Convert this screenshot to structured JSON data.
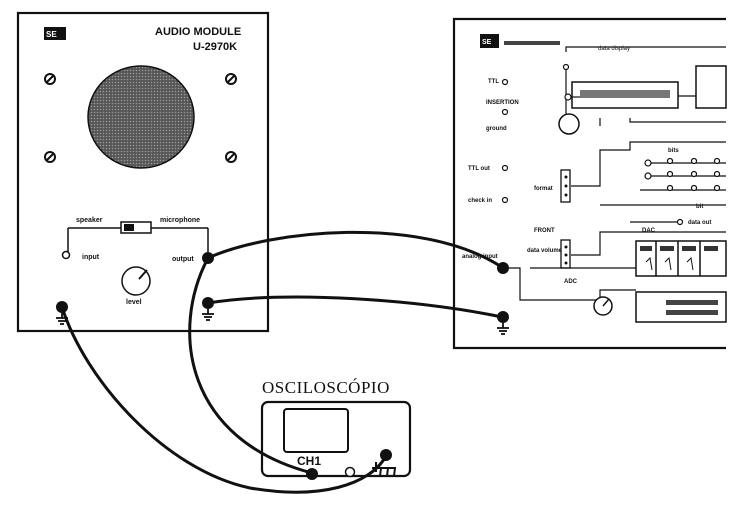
{
  "audio_module": {
    "logo": "SE",
    "title": "AUDIO MODULE",
    "model": "U-2970K",
    "switch_left": "speaker",
    "switch_right": "microphone",
    "input_label": "input",
    "output_label": "output",
    "level_label": "level"
  },
  "digital_module": {
    "logo": "SE",
    "title": "",
    "labels": {
      "data_display": "data display",
      "ttl": "TTL",
      "insertion": "INSERTION",
      "ground": "ground",
      "ttl_out": "TTL out",
      "format": "format",
      "check": "check in",
      "data_out": "data out",
      "front": "FRONT",
      "data_volume": "data volume",
      "analog_input": "analog input",
      "adc": "ADC",
      "bits": "bits",
      "bit": "bit",
      "dac": "DAC"
    }
  },
  "oscilloscope": {
    "title": "OSCILOSCÓPIO",
    "channel": "CH1"
  }
}
